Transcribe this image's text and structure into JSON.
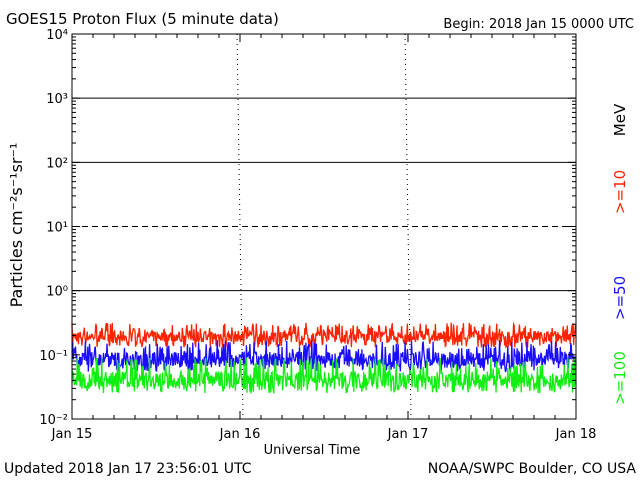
{
  "header": {
    "title": "GOES15 Proton Flux (5 minute data)",
    "begin": "Begin: 2018 Jan 15 0000 UTC"
  },
  "footer": {
    "updated": "Updated 2018 Jan 17 23:56:01 UTC",
    "source": "NOAA/SWPC Boulder, CO USA"
  },
  "chart_data": {
    "type": "line",
    "title": "GOES15 Proton Flux (5 minute data)",
    "xlabel": "Universal Time",
    "ylabel": "Particles cm⁻²s⁻¹sr⁻¹",
    "yscale": "log",
    "ylim": [
      0.01,
      10000
    ],
    "x_ticks": [
      "Jan 15",
      "Jan 16",
      "Jan 17",
      "Jan 18"
    ],
    "y_ticks": [
      "10⁻²",
      "10⁻¹",
      "10⁰",
      "10¹",
      "10²",
      "10³",
      "10⁴"
    ],
    "thresholds": [
      {
        "value": 10,
        "style": "dashed"
      },
      {
        "value": 1,
        "style": "solid"
      },
      {
        "value": 100,
        "style": "solid"
      },
      {
        "value": 1000,
        "style": "solid"
      }
    ],
    "legend_unit": "MeV",
    "series": [
      {
        "name": ">=10",
        "color": "#ff2200",
        "min": 0.13,
        "max": 0.32,
        "typical": 0.19
      },
      {
        "name": ">=50",
        "color": "#1a0dff",
        "min": 0.055,
        "max": 0.17,
        "typical": 0.085
      },
      {
        "name": ">=100",
        "color": "#11ee11",
        "min": 0.025,
        "max": 0.09,
        "typical": 0.04
      }
    ],
    "grid": false,
    "legend_position": "right-vertical"
  }
}
